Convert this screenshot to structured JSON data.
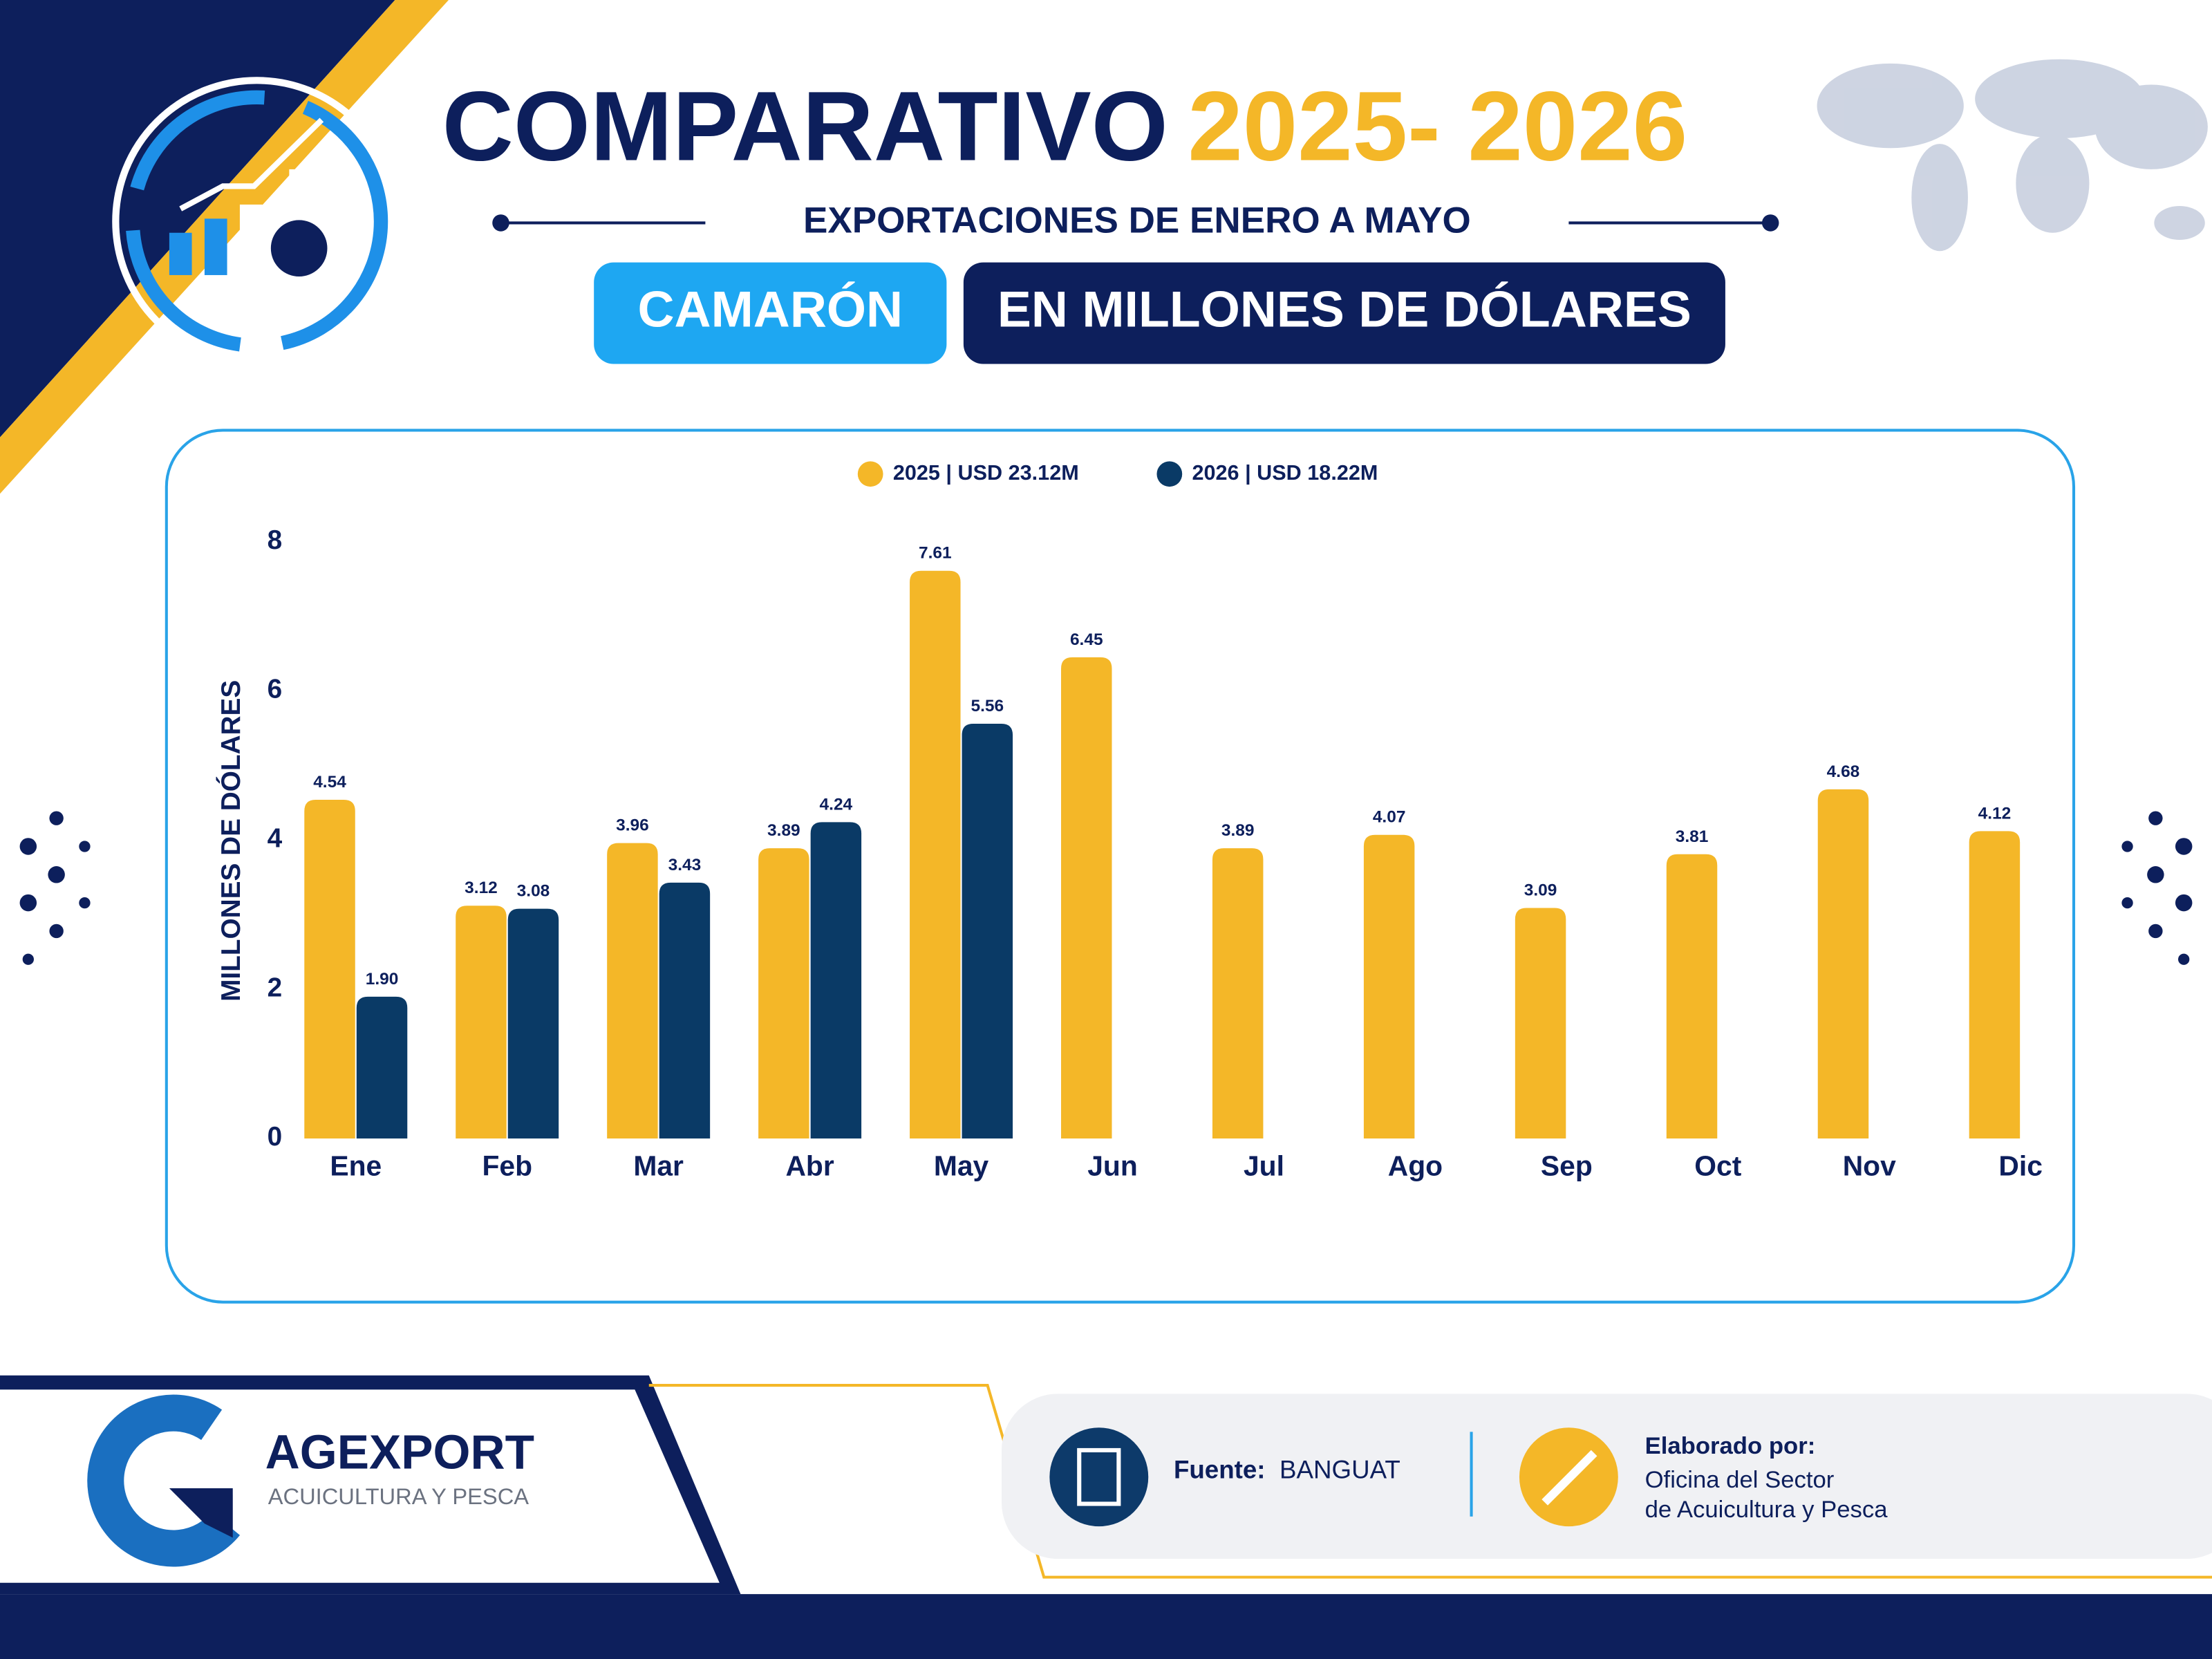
{
  "header": {
    "title": "COMPARATIVO",
    "title_years": "2025- 2026",
    "subtitle": "EXPORTACIONES DE ENERO A MAYO",
    "product": "CAMARÓN",
    "unit": "EN MILLONES DE DÓLARES"
  },
  "chart_data": {
    "type": "bar",
    "y_label": "MILLONES DE DÓLARES",
    "categories": [
      "Ene",
      "Feb",
      "Mar",
      "Abr",
      "May",
      "Jun",
      "Jul",
      "Ago",
      "Sep",
      "Oct",
      "Nov",
      "Dic"
    ],
    "series": [
      {
        "name": "2025 | USD 23.12M",
        "color": "#f4b728",
        "values": [
          4.54,
          3.12,
          3.96,
          3.89,
          7.61,
          6.45,
          3.89,
          4.07,
          3.09,
          3.81,
          4.68,
          4.12
        ],
        "value_labels": [
          "4.54",
          "3.12",
          "3.96",
          "3.89",
          "7.61",
          "6.45",
          "3.89",
          "4.07",
          "3.09",
          "3.81",
          "4.68",
          "4.12"
        ]
      },
      {
        "name": "2026 | USD 18.22M",
        "color": "#0a3a66",
        "values": [
          1.9,
          3.08,
          3.43,
          4.24,
          5.56,
          null,
          null,
          null,
          null,
          null,
          null,
          null
        ],
        "value_labels": [
          "1.90",
          "3.08",
          "3.43",
          "4.24",
          "5.56",
          null,
          null,
          null,
          null,
          null,
          null,
          null
        ]
      }
    ],
    "ylim": [
      0,
      8
    ],
    "yticks": [
      0,
      2,
      4,
      6,
      8
    ],
    "grid": false,
    "legend": "top"
  },
  "footer": {
    "brand": "AGEXPORT",
    "brand_sub": "ACUICULTURA Y PESCA",
    "source_label": "Fuente:",
    "source": "BANGUAT",
    "made_by_label": "Elaborado por:",
    "made_by_lines": [
      "Oficina del Sector",
      "de Acuicultura y Pesca"
    ]
  }
}
